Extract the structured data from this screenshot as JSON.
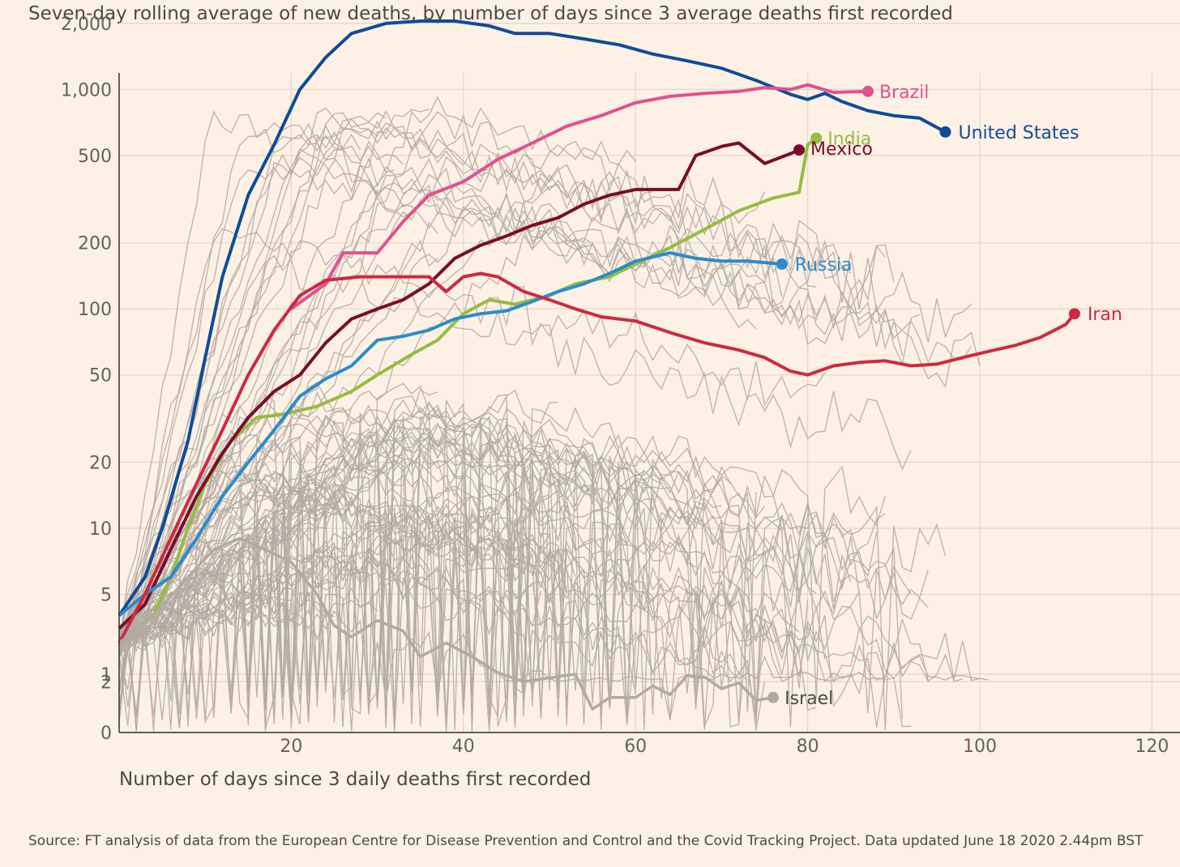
{
  "header": {
    "title": "Seven-day rolling average of new deaths, by number of days since 3 average deaths first recorded"
  },
  "footer": {
    "source": "Source: FT analysis of data from the European Centre for Disease Prevention and Control and the Covid Tracking Project. Data updated June 18 2020 2.44pm BST"
  },
  "chart_data": {
    "type": "line",
    "title": "Seven-day rolling average of new deaths, by number of days since 3 average deaths first recorded",
    "xlabel": "Number of days since 3 daily deaths first recorded",
    "ylabel": "",
    "yscale": "log",
    "xlim": [
      0,
      122
    ],
    "x_ticks": [
      20,
      40,
      60,
      80,
      100,
      120
    ],
    "x_tick_labels": [
      "20",
      "40",
      "60",
      "80",
      "100",
      "120"
    ],
    "y_ticks": [
      0,
      1,
      2,
      5,
      10,
      20,
      50,
      100,
      200,
      500,
      1000,
      2000
    ],
    "y_tick_labels": [
      "0",
      "1",
      "2",
      "5",
      "10",
      "20",
      "50",
      "100",
      "200",
      "500",
      "1,000",
      "2,000"
    ],
    "grid": true,
    "background_series_color": "#b3aaa2",
    "series": [
      {
        "name": "United States",
        "color": "#0f4c96",
        "label_color": "#0f4c96",
        "points": [
          [
            0,
            4
          ],
          [
            3,
            6
          ],
          [
            5,
            10
          ],
          [
            8,
            25
          ],
          [
            10,
            60
          ],
          [
            12,
            140
          ],
          [
            15,
            330
          ],
          [
            18,
            560
          ],
          [
            21,
            1000
          ],
          [
            24,
            1400
          ],
          [
            27,
            1800
          ],
          [
            31,
            2000
          ],
          [
            35,
            2050
          ],
          [
            39,
            2050
          ],
          [
            43,
            1950
          ],
          [
            46,
            1800
          ],
          [
            50,
            1800
          ],
          [
            54,
            1700
          ],
          [
            58,
            1600
          ],
          [
            62,
            1450
          ],
          [
            66,
            1350
          ],
          [
            70,
            1250
          ],
          [
            74,
            1100
          ],
          [
            78,
            950
          ],
          [
            80,
            900
          ],
          [
            82,
            960
          ],
          [
            84,
            880
          ],
          [
            87,
            800
          ],
          [
            90,
            760
          ],
          [
            93,
            740
          ],
          [
            96,
            640
          ]
        ]
      },
      {
        "name": "Brazil",
        "color": "#e2508e",
        "label_color": "#e2508e",
        "points": [
          [
            20,
            100
          ],
          [
            24,
            130
          ],
          [
            26,
            180
          ],
          [
            30,
            180
          ],
          [
            33,
            250
          ],
          [
            36,
            330
          ],
          [
            40,
            380
          ],
          [
            44,
            480
          ],
          [
            48,
            570
          ],
          [
            52,
            680
          ],
          [
            56,
            760
          ],
          [
            60,
            870
          ],
          [
            64,
            930
          ],
          [
            68,
            960
          ],
          [
            72,
            980
          ],
          [
            75,
            1020
          ],
          [
            78,
            1000
          ],
          [
            80,
            1050
          ],
          [
            83,
            970
          ],
          [
            87,
            980
          ]
        ]
      },
      {
        "name": "India",
        "color": "#96bc42",
        "label_color": "#96bc42",
        "points": [
          [
            0,
            3
          ],
          [
            4,
            4
          ],
          [
            6,
            6
          ],
          [
            8,
            10
          ],
          [
            10,
            16
          ],
          [
            13,
            25
          ],
          [
            16,
            32
          ],
          [
            19,
            33
          ],
          [
            23,
            36
          ],
          [
            27,
            42
          ],
          [
            30,
            50
          ],
          [
            34,
            62
          ],
          [
            37,
            72
          ],
          [
            40,
            95
          ],
          [
            43,
            110
          ],
          [
            46,
            105
          ],
          [
            50,
            115
          ],
          [
            53,
            130
          ],
          [
            57,
            140
          ],
          [
            60,
            160
          ],
          [
            64,
            190
          ],
          [
            68,
            230
          ],
          [
            72,
            280
          ],
          [
            76,
            320
          ],
          [
            79,
            340
          ],
          [
            80,
            560
          ],
          [
            81,
            600
          ]
        ]
      },
      {
        "name": "Mexico",
        "color": "#7a0c2b",
        "label_color": "#7a0c2b",
        "points": [
          [
            0,
            3.5
          ],
          [
            3,
            4.5
          ],
          [
            6,
            8
          ],
          [
            9,
            14
          ],
          [
            12,
            22
          ],
          [
            15,
            32
          ],
          [
            18,
            42
          ],
          [
            21,
            50
          ],
          [
            24,
            70
          ],
          [
            27,
            90
          ],
          [
            30,
            100
          ],
          [
            33,
            110
          ],
          [
            36,
            130
          ],
          [
            39,
            170
          ],
          [
            42,
            195
          ],
          [
            45,
            215
          ],
          [
            48,
            240
          ],
          [
            51,
            260
          ],
          [
            54,
            300
          ],
          [
            57,
            330
          ],
          [
            60,
            350
          ],
          [
            63,
            350
          ],
          [
            65,
            350
          ],
          [
            67,
            500
          ],
          [
            70,
            550
          ],
          [
            72,
            570
          ],
          [
            75,
            460
          ],
          [
            78,
            510
          ],
          [
            79,
            530
          ]
        ]
      },
      {
        "name": "Russia",
        "color": "#2b8cc8",
        "label_color": "#2b8cc8",
        "points": [
          [
            0,
            4
          ],
          [
            3,
            5
          ],
          [
            6,
            6
          ],
          [
            9,
            9
          ],
          [
            12,
            14
          ],
          [
            15,
            20
          ],
          [
            18,
            28
          ],
          [
            21,
            40
          ],
          [
            24,
            48
          ],
          [
            27,
            55
          ],
          [
            30,
            72
          ],
          [
            33,
            75
          ],
          [
            36,
            80
          ],
          [
            39,
            90
          ],
          [
            42,
            95
          ],
          [
            45,
            98
          ],
          [
            48,
            108
          ],
          [
            51,
            120
          ],
          [
            54,
            130
          ],
          [
            57,
            145
          ],
          [
            60,
            165
          ],
          [
            64,
            180
          ],
          [
            67,
            170
          ],
          [
            70,
            165
          ],
          [
            73,
            165
          ],
          [
            77,
            160
          ]
        ]
      },
      {
        "name": "Iran",
        "color": "#cc2a41",
        "label_color": "#cc2a41",
        "points": [
          [
            0,
            3
          ],
          [
            3,
            5
          ],
          [
            6,
            9
          ],
          [
            9,
            16
          ],
          [
            12,
            28
          ],
          [
            15,
            50
          ],
          [
            18,
            80
          ],
          [
            21,
            115
          ],
          [
            24,
            135
          ],
          [
            28,
            140
          ],
          [
            32,
            140
          ],
          [
            36,
            140
          ],
          [
            38,
            120
          ],
          [
            40,
            140
          ],
          [
            42,
            145
          ],
          [
            44,
            140
          ],
          [
            47,
            120
          ],
          [
            50,
            110
          ],
          [
            53,
            100
          ],
          [
            56,
            92
          ],
          [
            60,
            88
          ],
          [
            64,
            78
          ],
          [
            68,
            70
          ],
          [
            72,
            65
          ],
          [
            75,
            60
          ],
          [
            78,
            52
          ],
          [
            80,
            50
          ],
          [
            83,
            55
          ],
          [
            86,
            57
          ],
          [
            89,
            58
          ],
          [
            92,
            55
          ],
          [
            95,
            56
          ],
          [
            98,
            60
          ],
          [
            101,
            64
          ],
          [
            104,
            68
          ],
          [
            107,
            74
          ],
          [
            110,
            85
          ],
          [
            111,
            95
          ]
        ]
      },
      {
        "name": "Israel",
        "color": "#b3aaa2",
        "label_color": "#4d4845",
        "points": [
          [
            0,
            3
          ],
          [
            4,
            4
          ],
          [
            8,
            6
          ],
          [
            11,
            8
          ],
          [
            14,
            9
          ],
          [
            17,
            8
          ],
          [
            20,
            7
          ],
          [
            23,
            5
          ],
          [
            25,
            3.6
          ],
          [
            27,
            3.2
          ],
          [
            30,
            3.8
          ],
          [
            33,
            3.4
          ],
          [
            35,
            2.6
          ],
          [
            38,
            3
          ],
          [
            41,
            2.6
          ],
          [
            44,
            2.2
          ],
          [
            47,
            2
          ],
          [
            50,
            1.5
          ],
          [
            53,
            1
          ],
          [
            55,
            0.4
          ],
          [
            57,
            0.6
          ],
          [
            60,
            0.6
          ],
          [
            62,
            0.8
          ],
          [
            64,
            0.65
          ],
          [
            66,
            1.2
          ],
          [
            68,
            0.95
          ],
          [
            70,
            0.75
          ],
          [
            72,
            0.85
          ],
          [
            74,
            0.55
          ],
          [
            76,
            0.6
          ]
        ]
      }
    ]
  }
}
